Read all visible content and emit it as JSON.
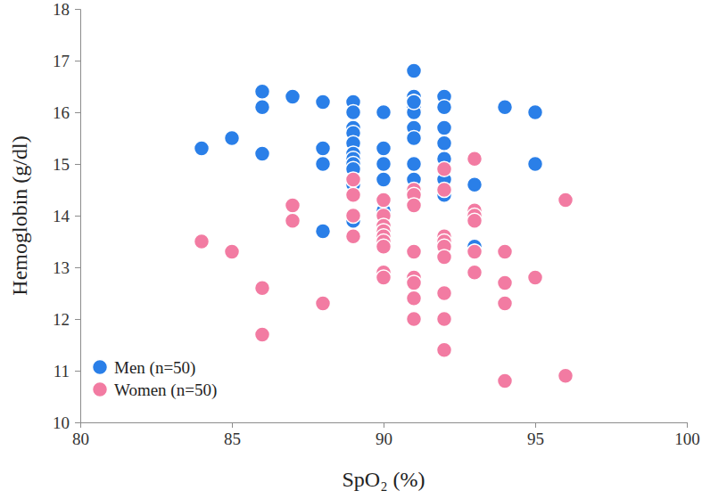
{
  "chart_data": {
    "type": "scatter",
    "x_label": "SpO₂ (%)",
    "y_label": "Hemoglobin (g/dl)",
    "xlim": [
      80,
      100
    ],
    "xticks": [
      80,
      85,
      90,
      95,
      100
    ],
    "ylim": [
      10,
      18
    ],
    "yticks": [
      10,
      11,
      12,
      13,
      14,
      15,
      16,
      17,
      18
    ],
    "legend": "lower left",
    "grid": false,
    "series": [
      {
        "name": "Men (n=50)",
        "color": "#2a7fe8",
        "marker": "circle",
        "x": [
          84,
          85,
          86,
          86,
          86,
          87,
          88,
          88,
          88,
          88,
          89,
          89,
          89,
          89,
          89,
          89,
          89,
          89,
          89,
          89,
          89,
          90,
          90,
          90,
          90,
          90,
          91,
          91,
          91,
          91,
          91,
          91,
          91,
          91,
          91,
          91,
          92,
          92,
          92,
          92,
          92,
          92,
          92,
          92,
          93,
          93,
          93,
          94,
          95,
          95
        ],
        "values": [
          15.3,
          15.5,
          16.4,
          16.1,
          15.2,
          16.3,
          16.2,
          15.3,
          15.0,
          13.7,
          16.2,
          16.0,
          15.7,
          15.6,
          15.4,
          15.2,
          15.1,
          15.0,
          14.9,
          14.6,
          13.9,
          16.0,
          15.3,
          15.0,
          14.7,
          14.1,
          16.8,
          16.3,
          16.2,
          16.1,
          16.0,
          15.7,
          15.5,
          15.0,
          14.7,
          16.2,
          16.3,
          16.1,
          15.7,
          15.7,
          15.4,
          15.1,
          14.7,
          14.4,
          14.6,
          13.4,
          13.3,
          16.1,
          16.0,
          15.0
        ]
      },
      {
        "name": "Women (n=50)",
        "color": "#f27ba2",
        "marker": "circle",
        "x": [
          84,
          85,
          86,
          86,
          87,
          87,
          88,
          89,
          89,
          89,
          89,
          90,
          90,
          90,
          90,
          90,
          90,
          90,
          90,
          90,
          91,
          91,
          91,
          91,
          91,
          91,
          91,
          91,
          92,
          92,
          92,
          92,
          92,
          92,
          92,
          92,
          92,
          93,
          93,
          93,
          93,
          93,
          93,
          94,
          94,
          94,
          94,
          95,
          96,
          96
        ],
        "values": [
          13.5,
          13.3,
          12.6,
          11.7,
          14.2,
          13.9,
          12.3,
          14.7,
          14.4,
          14.0,
          13.6,
          14.3,
          14.0,
          13.8,
          13.7,
          13.6,
          13.5,
          13.4,
          12.9,
          12.8,
          14.5,
          14.4,
          14.2,
          13.3,
          12.8,
          12.7,
          12.4,
          12.0,
          14.9,
          14.5,
          13.6,
          13.5,
          13.4,
          13.2,
          12.5,
          12.0,
          11.4,
          15.1,
          14.1,
          14.0,
          13.9,
          13.3,
          12.9,
          13.3,
          12.7,
          12.3,
          10.8,
          12.8,
          14.3,
          10.9
        ]
      }
    ]
  }
}
